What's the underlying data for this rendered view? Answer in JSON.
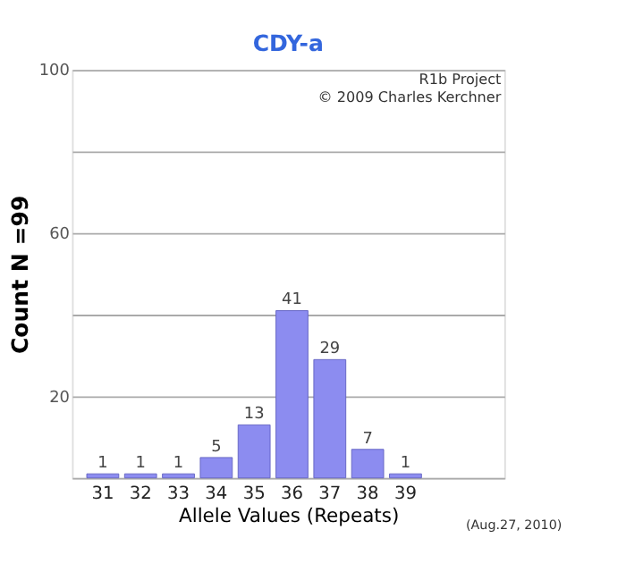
{
  "chart_data": {
    "type": "bar",
    "title": "CDY-a",
    "xlabel": "Allele Values (Repeats)",
    "ylabel": "Count N =99",
    "categories": [
      "31",
      "32",
      "33",
      "34",
      "35",
      "36",
      "37",
      "38",
      "39"
    ],
    "values": [
      1,
      1,
      1,
      5,
      13,
      41,
      29,
      7,
      1
    ],
    "color": "#8c8cf0",
    "ylim": [
      0,
      100
    ],
    "yticks": [
      {
        "value": 0,
        "label": null
      },
      20,
      {
        "value": 40,
        "label": null
      },
      60,
      {
        "value": 80,
        "label": null
      },
      100
    ],
    "grid": "y",
    "data_labels": true,
    "annotations": [
      "R1b Project",
      "© 2009 Charles Kerchner",
      "(Aug.27, 2010)"
    ]
  }
}
